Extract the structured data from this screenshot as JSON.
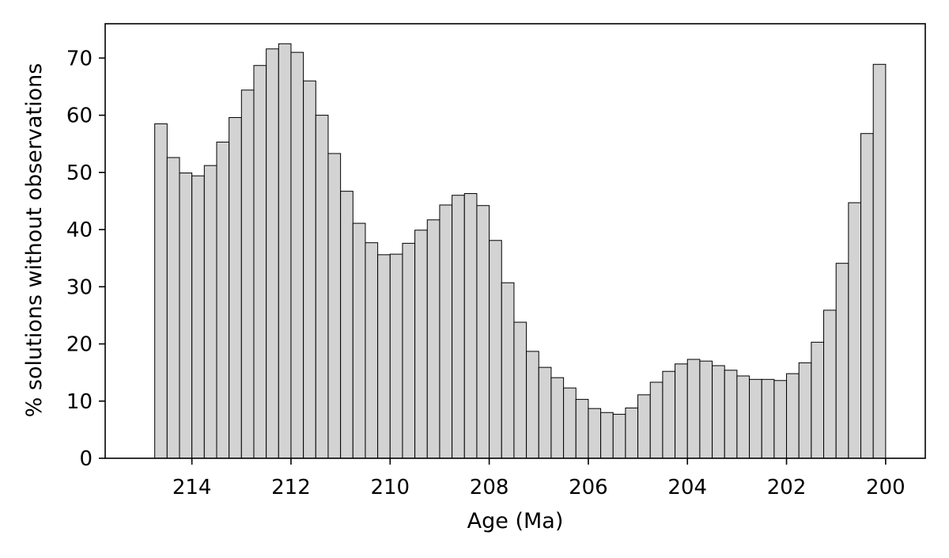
{
  "chart_data": {
    "type": "bar",
    "xlabel": "Age (Ma)",
    "ylabel": "% solutions without observations",
    "x_reversed": true,
    "xlim": [
      215.75,
      199.2
    ],
    "ylim": [
      0,
      76
    ],
    "xticks": [
      214,
      212,
      210,
      208,
      206,
      204,
      202,
      200
    ],
    "yticks": [
      0,
      10,
      20,
      30,
      40,
      50,
      60,
      70
    ],
    "bin_width_ma": 0.25,
    "bins_start_ma": 214.75,
    "values": [
      58.5,
      52.6,
      49.9,
      49.4,
      51.2,
      55.3,
      59.6,
      64.4,
      68.7,
      71.6,
      72.5,
      71.0,
      66.0,
      60.0,
      53.3,
      46.7,
      41.1,
      37.7,
      35.6,
      35.7,
      37.6,
      39.9,
      41.7,
      44.3,
      46.0,
      46.3,
      44.2,
      38.1,
      30.7,
      23.8,
      18.7,
      15.9,
      14.1,
      12.3,
      10.3,
      8.7,
      8.0,
      7.7,
      8.8,
      11.1,
      13.3,
      15.2,
      16.5,
      17.3,
      17.0,
      16.2,
      15.4,
      14.4,
      13.8,
      13.8,
      13.6,
      14.8,
      16.7,
      20.3,
      25.9,
      34.1,
      44.7,
      56.8,
      68.9
    ],
    "bar_color": "#d3d3d3",
    "edge_color": "#000000",
    "grid": false
  }
}
